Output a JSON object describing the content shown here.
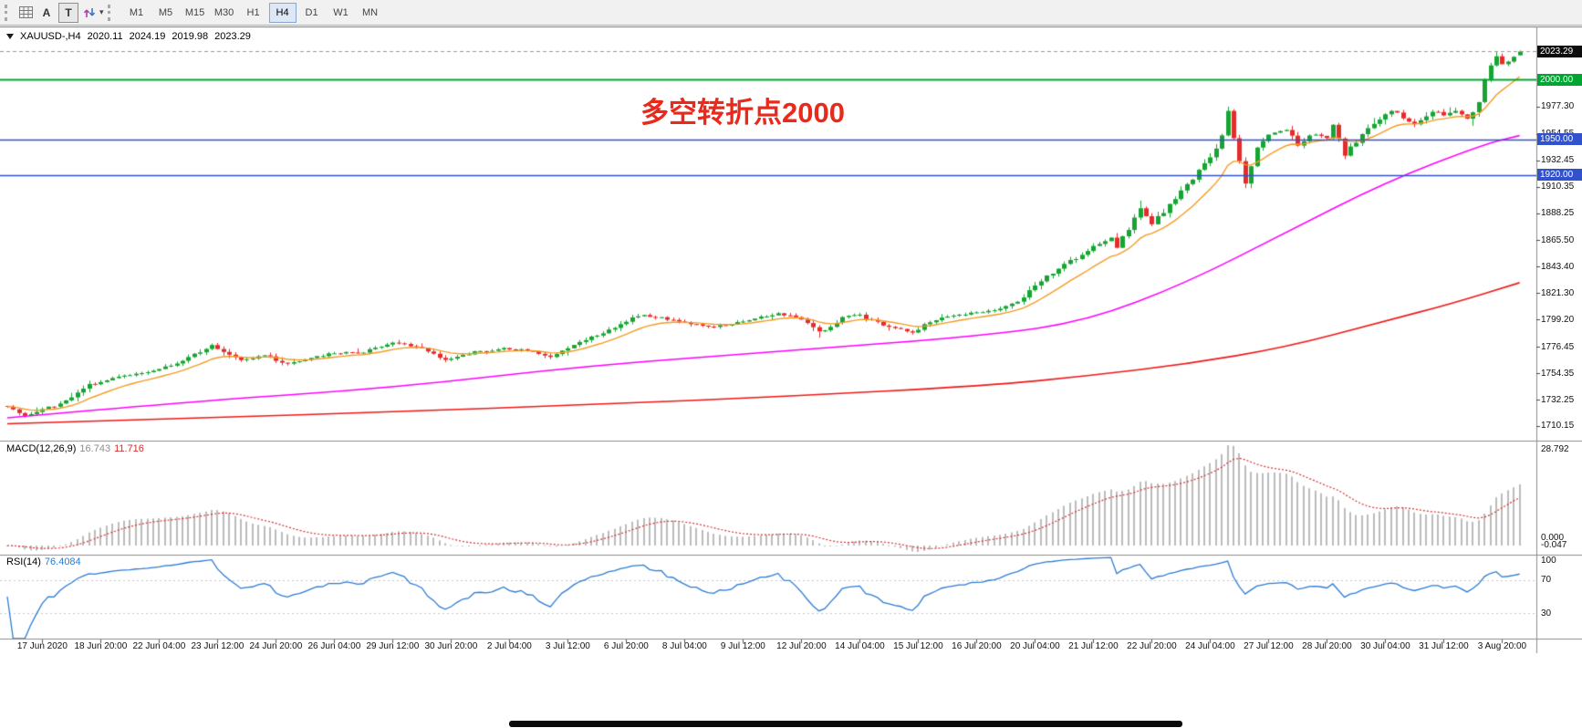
{
  "toolbar": {
    "a_label": "A",
    "t_label": "T",
    "timeframes": [
      {
        "label": "M1",
        "active": false
      },
      {
        "label": "M5",
        "active": false
      },
      {
        "label": "M15",
        "active": false
      },
      {
        "label": "M30",
        "active": false
      },
      {
        "label": "H1",
        "active": false
      },
      {
        "label": "H4",
        "active": true
      },
      {
        "label": "D1",
        "active": false
      },
      {
        "label": "W1",
        "active": false
      },
      {
        "label": "MN",
        "active": false
      }
    ]
  },
  "chart": {
    "symbol_line": "XAUUSD-,H4",
    "ohlc": {
      "open": "2020.11",
      "high": "2024.19",
      "low": "2019.98",
      "close": "2023.29"
    },
    "annotation": {
      "text": "多空转折点2000",
      "color": "#e8291c"
    },
    "current_price_tag": {
      "text": "2023.29",
      "bg": "#0d0d0d",
      "fg": "#ffffff"
    }
  },
  "macd": {
    "name": "MACD(12,26,9)",
    "value_main": "16.743",
    "value_signal": "11.716",
    "axis_max": "28.792",
    "axis_zero": "0.000",
    "axis_min": "-0.047",
    "hist_color": "#bbbbbb",
    "signal_color": "#d23030"
  },
  "rsi": {
    "name": "RSI(14)",
    "value": "76.4084",
    "axis": [
      "100",
      "70",
      "30"
    ],
    "levels": [
      70,
      30
    ],
    "line_color": "#2d7bd4"
  },
  "chart_data": {
    "type": "candlestick",
    "symbol": "XAUUSD",
    "timeframe": "H4",
    "bars": 260,
    "seed": 7,
    "up_color": "#18a434",
    "down_color": "#e22d2d",
    "price_axis_ticks": [
      "1977.30",
      "1954.55",
      "1932.45",
      "1910.35",
      "1888.25",
      "1865.50",
      "1843.40",
      "1821.30",
      "1799.20",
      "1776.45",
      "1754.35",
      "1732.25",
      "1710.15"
    ],
    "horizontal_lines": [
      {
        "label": "2000.00",
        "price": 2000.0,
        "color": "#00a532",
        "width": 2
      },
      {
        "label": "1950.00",
        "price": 1950.0,
        "color": "#3152cc",
        "width": 1.6
      },
      {
        "label": "1920.00",
        "price": 1920.0,
        "color": "#3152cc",
        "width": 1.6
      }
    ],
    "time_labels": [
      "17 Jun 2020",
      "18 Jun 20:00",
      "22 Jun 04:00",
      "23 Jun 12:00",
      "24 Jun 20:00",
      "26 Jun 04:00",
      "29 Jun 12:00",
      "30 Jun 20:00",
      "2 Jul 04:00",
      "3 Jul 12:00",
      "6 Jul 20:00",
      "8 Jul 04:00",
      "9 Jul 12:00",
      "12 Jul 20:00",
      "14 Jul 04:00",
      "15 Jul 12:00",
      "16 Jul 20:00",
      "20 Jul 04:00",
      "21 Jul 12:00",
      "22 Jul 20:00",
      "24 Jul 04:00",
      "27 Jul 12:00",
      "28 Jul 20:00",
      "30 Jul 04:00",
      "31 Jul 12:00",
      "3 Aug 20:00"
    ],
    "price_anchors": [
      [
        0,
        1727
      ],
      [
        3,
        1719
      ],
      [
        6,
        1724
      ],
      [
        9,
        1729
      ],
      [
        14,
        1744
      ],
      [
        19,
        1751
      ],
      [
        24,
        1755
      ],
      [
        29,
        1762
      ],
      [
        35,
        1777
      ],
      [
        40,
        1764
      ],
      [
        44,
        1770
      ],
      [
        47,
        1762
      ],
      [
        51,
        1766
      ],
      [
        56,
        1771
      ],
      [
        61,
        1772
      ],
      [
        66,
        1780
      ],
      [
        71,
        1776
      ],
      [
        75,
        1765
      ],
      [
        80,
        1772
      ],
      [
        85,
        1775
      ],
      [
        90,
        1773
      ],
      [
        93,
        1767
      ],
      [
        97,
        1778
      ],
      [
        102,
        1788
      ],
      [
        108,
        1803
      ],
      [
        112,
        1801
      ],
      [
        116,
        1796
      ],
      [
        121,
        1793
      ],
      [
        127,
        1798
      ],
      [
        132,
        1805
      ],
      [
        137,
        1797
      ],
      [
        139,
        1788
      ],
      [
        143,
        1801
      ],
      [
        146,
        1803
      ],
      [
        150,
        1794
      ],
      [
        155,
        1789
      ],
      [
        159,
        1799
      ],
      [
        164,
        1804
      ],
      [
        169,
        1807
      ],
      [
        173,
        1814
      ],
      [
        177,
        1832
      ],
      [
        182,
        1848
      ],
      [
        186,
        1860
      ],
      [
        189,
        1867
      ],
      [
        190,
        1860
      ],
      [
        192,
        1874
      ],
      [
        194,
        1893
      ],
      [
        196,
        1880
      ],
      [
        198,
        1890
      ],
      [
        201,
        1906
      ],
      [
        203,
        1917
      ],
      [
        206,
        1936
      ],
      [
        208,
        1952
      ],
      [
        209,
        1972
      ],
      [
        211,
        1930
      ],
      [
        212,
        1912
      ],
      [
        214,
        1942
      ],
      [
        216,
        1954
      ],
      [
        219,
        1958
      ],
      [
        221,
        1945
      ],
      [
        223,
        1955
      ],
      [
        226,
        1951
      ],
      [
        227,
        1961
      ],
      [
        229,
        1938
      ],
      [
        231,
        1948
      ],
      [
        234,
        1964
      ],
      [
        237,
        1974
      ],
      [
        239,
        1968
      ],
      [
        241,
        1963
      ],
      [
        244,
        1974
      ],
      [
        246,
        1969
      ],
      [
        248,
        1974
      ],
      [
        250,
        1966
      ],
      [
        251,
        1972
      ],
      [
        252,
        1980
      ],
      [
        253,
        2002
      ],
      [
        254,
        2012
      ],
      [
        255,
        2019
      ],
      [
        256,
        2014
      ],
      [
        257,
        2016
      ],
      [
        258,
        2020
      ],
      [
        259,
        2023.29
      ]
    ],
    "ma_fast": {
      "type": "ema",
      "period": 12,
      "color": "#f59a23"
    },
    "ma_mid": {
      "color": "#ff00ff",
      "anchors": [
        [
          0,
          1717
        ],
        [
          32,
          1731
        ],
        [
          66,
          1742
        ],
        [
          100,
          1761
        ],
        [
          134,
          1773
        ],
        [
          168,
          1786
        ],
        [
          185,
          1798
        ],
        [
          202,
          1830
        ],
        [
          219,
          1872
        ],
        [
          236,
          1914
        ],
        [
          253,
          1946
        ],
        [
          259,
          1953
        ]
      ]
    },
    "ma_slow": {
      "color": "#f01818",
      "anchors": [
        [
          0,
          1712
        ],
        [
          34,
          1717
        ],
        [
          66,
          1722
        ],
        [
          100,
          1728
        ],
        [
          134,
          1735
        ],
        [
          168,
          1744
        ],
        [
          185,
          1752
        ],
        [
          202,
          1762
        ],
        [
          219,
          1776
        ],
        [
          236,
          1798
        ],
        [
          247,
          1812
        ],
        [
          259,
          1830
        ]
      ]
    },
    "indicators": {
      "macd": {
        "fast": 12,
        "slow": 26,
        "signal": 9,
        "current_main": 16.743,
        "current_signal": 11.716,
        "axis_max": 28.792,
        "axis_min": -0.047
      },
      "rsi": {
        "period": 14,
        "current": 76.4084,
        "levels": [
          70,
          30
        ]
      }
    }
  }
}
